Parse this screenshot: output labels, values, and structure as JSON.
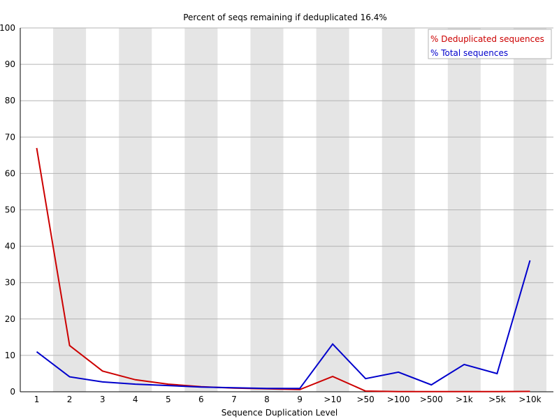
{
  "chart_data": {
    "type": "line",
    "title": "Percent of seqs remaining if deduplicated 16.4%",
    "xlabel": "Sequence Duplication Level",
    "ylabel": "",
    "categories": [
      "1",
      "2",
      "3",
      "4",
      "5",
      "6",
      "7",
      "8",
      "9",
      ">10",
      ">50",
      ">100",
      ">500",
      ">1k",
      ">5k",
      ">10k"
    ],
    "ylim": [
      0,
      100
    ],
    "yticks": [
      0,
      10,
      20,
      30,
      40,
      50,
      60,
      70,
      80,
      90,
      100
    ],
    "grid": true,
    "legend_position": "top-right",
    "series": [
      {
        "name": "% Deduplicated sequences",
        "color": "#cc0000",
        "values": [
          67.0,
          12.7,
          5.7,
          3.3,
          2.1,
          1.4,
          1.0,
          0.8,
          0.6,
          4.2,
          0.2,
          0.05,
          0.03,
          0.05,
          0.03,
          0.1
        ]
      },
      {
        "name": "% Total sequences",
        "color": "#0000cc",
        "values": [
          11.0,
          4.1,
          2.7,
          2.1,
          1.7,
          1.3,
          1.1,
          0.9,
          0.9,
          13.1,
          3.6,
          5.4,
          1.9,
          7.5,
          5.0,
          36.1
        ]
      }
    ]
  }
}
